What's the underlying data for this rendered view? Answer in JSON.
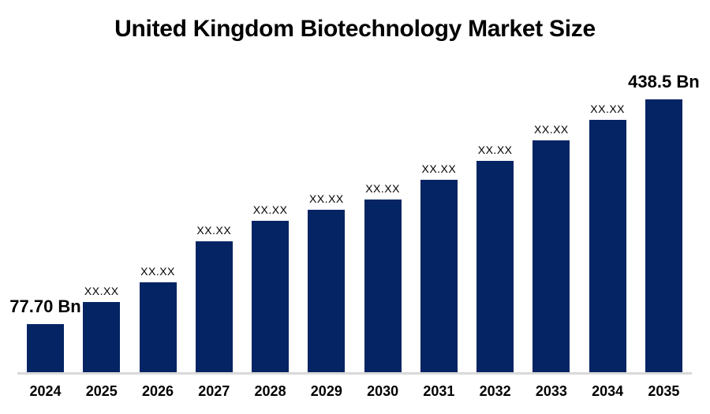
{
  "page": {
    "background": "#ffffff"
  },
  "colors": {
    "bar": "#052463",
    "axis_line": "#d9d9d9",
    "text": "#000000"
  },
  "chart_data": {
    "type": "bar",
    "title": "United Kingdom Biotechnology Market Size",
    "categories": [
      "2024",
      "2025",
      "2026",
      "2027",
      "2028",
      "2029",
      "2030",
      "2031",
      "2032",
      "2033",
      "2034",
      "2035"
    ],
    "values": [
      77.7,
      113,
      145,
      210,
      243,
      261,
      277,
      309,
      340,
      373,
      406,
      438.5
    ],
    "bar_labels": [
      "77.70 Bn",
      "XX.XX",
      "XX.XX",
      "XX.XX",
      "XX.XX",
      "XX.XX",
      "XX.XX",
      "XX.XX",
      "XX.XX",
      "XX.XX",
      "XX.XX",
      "438.5 Bn"
    ],
    "emphasized": [
      true,
      false,
      false,
      false,
      false,
      false,
      false,
      false,
      false,
      false,
      false,
      true
    ],
    "masked_value_text": "XX.XX",
    "first_value_label": "77.70 Bn",
    "last_value_label": "438.5 Bn",
    "unit": "Bn",
    "xlabel": "",
    "ylabel": "",
    "ylim": [
      0,
      438.5
    ],
    "grid": false,
    "legend": false,
    "note": "Intermediate bar values are masked as XX.XX in the source image; numeric values for those bars are estimated from bar heights."
  }
}
